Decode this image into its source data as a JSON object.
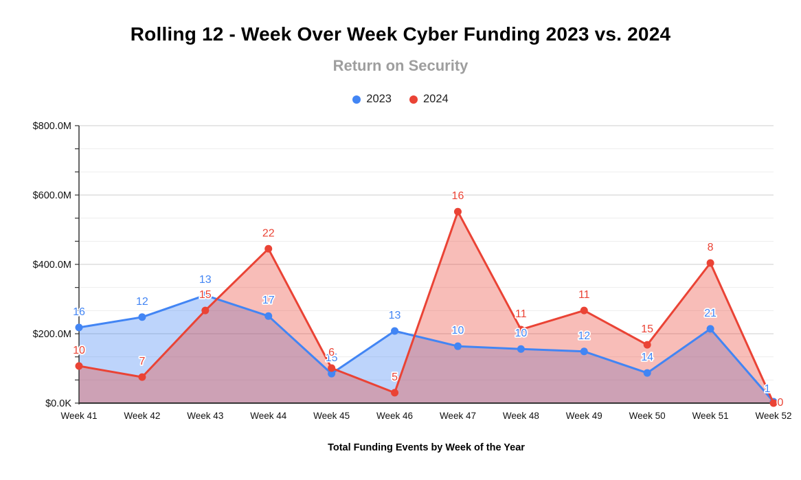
{
  "chart_data": {
    "type": "area",
    "title": "Rolling 12 - Week Over Week Cyber Funding 2023 vs. 2024",
    "subtitle": "Return on Security",
    "xlabel": "Total Funding Events by Week of the Year",
    "ylabel": "",
    "legend_position": "top-center",
    "grid": "on",
    "ylim": [
      0,
      800
    ],
    "y_unit": "USD millions",
    "minor_gridlines_between_majors": 2,
    "y_ticks": [
      {
        "value": 800,
        "label": "$800.0M"
      },
      {
        "value": 600,
        "label": "$600.0M"
      },
      {
        "value": 400,
        "label": "$400.0M"
      },
      {
        "value": 200,
        "label": "$200.0M"
      },
      {
        "value": 0,
        "label": "$0.0K"
      }
    ],
    "categories": [
      "Week 41",
      "Week 42",
      "Week 43",
      "Week 44",
      "Week 45",
      "Week 46",
      "Week 47",
      "Week 48",
      "Week 49",
      "Week 50",
      "Week 51",
      "Week 52"
    ],
    "series": [
      {
        "name": "2023",
        "color": "#4285F4",
        "fill_opacity": 0.35,
        "amounts_musd": [
          218,
          248,
          311,
          251,
          85,
          208,
          164,
          156,
          149,
          87,
          214,
          4
        ],
        "point_labels": [
          "16",
          "12",
          "13",
          "17",
          "15",
          "13",
          "10",
          "10",
          "12",
          "14",
          "21",
          "1"
        ]
      },
      {
        "name": "2024",
        "color": "#EA4335",
        "fill_opacity": 0.35,
        "amounts_musd": [
          107,
          75,
          267,
          445,
          101,
          30,
          552,
          212,
          267,
          168,
          404,
          0
        ],
        "point_labels": [
          "10",
          "7",
          "15",
          "22",
          "6",
          "5",
          "16",
          "11",
          "11",
          "15",
          "8",
          "0"
        ]
      }
    ],
    "label_overrides": {
      "2023": {
        "11": {
          "dx": -9,
          "dy": -14
        }
      },
      "2024": {
        "11": {
          "dx": 10,
          "dy": 4
        }
      }
    }
  }
}
